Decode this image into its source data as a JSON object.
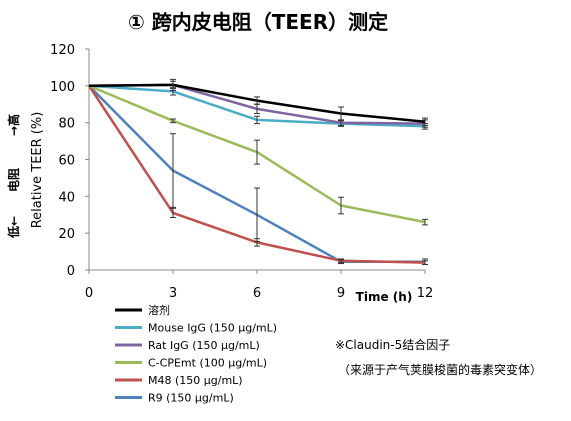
{
  "title": "① 跨内皮电阻（TEER）测定",
  "side_label_low": "低←",
  "side_label_mid": "电阻",
  "side_label_high": "→高",
  "note_line1": "※Claudin-5结合因子",
  "note_line2": "（来源于产气荚膜梭菌的毒素突变体）",
  "chart_data": {
    "type": "line",
    "title": "① 跨内皮电阻（TEER）测定",
    "xlabel": "Time (h)",
    "ylabel": "Relative TEER (%)",
    "x": [
      0,
      3,
      6,
      9,
      12
    ],
    "xlim": [
      0,
      12
    ],
    "ylim": [
      0,
      120
    ],
    "xticks": [
      "0",
      "3",
      "6",
      "9",
      "12"
    ],
    "yticks": [
      "0",
      "20",
      "40",
      "60",
      "80",
      "100",
      "120"
    ],
    "legend_position": "bottom-left",
    "grid": false,
    "series": [
      {
        "name": "溶剂",
        "color": "#000000",
        "values": [
          100,
          100.5,
          92,
          85,
          80.5
        ],
        "errors": [
          0,
          3,
          2,
          3.5,
          2
        ]
      },
      {
        "name": "Mouse IgG (150 μg/mL)",
        "color": "#4bacc6",
        "values": [
          100,
          97,
          81.5,
          79.5,
          78
        ],
        "errors": [
          0,
          2,
          2,
          1.5,
          1.5
        ]
      },
      {
        "name": "Rat IgG (150 μg/mL)",
        "color": "#8064a2",
        "values": [
          100,
          100.5,
          87.5,
          80,
          79.5
        ],
        "errors": [
          0,
          2,
          2.5,
          1.5,
          2
        ]
      },
      {
        "name": "C-CPEmt (100 μg/mL)",
        "color": "#9bbb59",
        "values": [
          100,
          81,
          64,
          35,
          26
        ],
        "errors": [
          0,
          1,
          6.5,
          4.5,
          1.5
        ]
      },
      {
        "name": "M48 (150 μg/mL)",
        "color": "#c0504d",
        "values": [
          100,
          31,
          15,
          5,
          4
        ],
        "errors": [
          0,
          2.5,
          2,
          1,
          1
        ]
      },
      {
        "name": "R9 (150 μg/mL)",
        "color": "#4f81bd",
        "values": [
          100,
          54,
          30,
          4.5,
          4.5
        ],
        "errors": [
          0,
          20,
          14.5,
          1,
          1.5
        ]
      }
    ]
  }
}
